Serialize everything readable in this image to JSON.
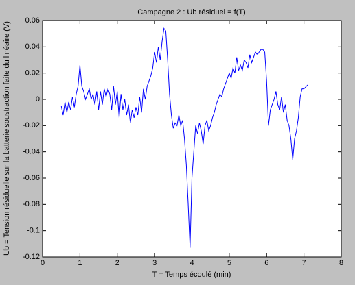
{
  "chart_data": {
    "type": "line",
    "title": "Campagne 2 : Ub résiduel = f(T)",
    "x_label": "T = Temps écoulé (min)",
    "y_label": "Ub = Tension résiduelle sur la batterie soustraction faite du linéaire (V)",
    "xlim": [
      0,
      8
    ],
    "xticks": [
      0,
      1,
      2,
      3,
      4,
      5,
      6,
      7,
      8
    ],
    "ylim": [
      -0.12,
      0.06
    ],
    "yticks": [
      -0.12,
      -0.1,
      -0.08,
      -0.06,
      -0.04,
      -0.02,
      0,
      0.02,
      0.04,
      0.06
    ],
    "series": [
      {
        "color": "#0000ff",
        "x": [
          0.5,
          0.55,
          0.6,
          0.65,
          0.7,
          0.75,
          0.8,
          0.85,
          0.9,
          0.95,
          1.0,
          1.05,
          1.1,
          1.15,
          1.2,
          1.25,
          1.3,
          1.35,
          1.4,
          1.45,
          1.5,
          1.55,
          1.6,
          1.65,
          1.7,
          1.75,
          1.8,
          1.85,
          1.9,
          1.95,
          2.0,
          2.05,
          2.1,
          2.15,
          2.2,
          2.25,
          2.3,
          2.35,
          2.4,
          2.45,
          2.5,
          2.55,
          2.6,
          2.65,
          2.7,
          2.75,
          2.8,
          2.85,
          2.9,
          2.95,
          3.0,
          3.05,
          3.1,
          3.15,
          3.2,
          3.25,
          3.3,
          3.35,
          3.4,
          3.45,
          3.5,
          3.55,
          3.6,
          3.65,
          3.7,
          3.75,
          3.8,
          3.85,
          3.9,
          3.95,
          4.0,
          4.05,
          4.1,
          4.15,
          4.2,
          4.25,
          4.3,
          4.35,
          4.4,
          4.45,
          4.5,
          4.55,
          4.6,
          4.65,
          4.7,
          4.75,
          4.8,
          4.85,
          4.9,
          4.95,
          5.0,
          5.05,
          5.1,
          5.15,
          5.2,
          5.25,
          5.3,
          5.35,
          5.4,
          5.45,
          5.5,
          5.55,
          5.6,
          5.65,
          5.7,
          5.75,
          5.8,
          5.85,
          5.9,
          5.95,
          6.0,
          6.05,
          6.1,
          6.15,
          6.2,
          6.25,
          6.3,
          6.35,
          6.4,
          6.45,
          6.5,
          6.55,
          6.6,
          6.65,
          6.7,
          6.75,
          6.8,
          6.85,
          6.9,
          6.95,
          7.0,
          7.1
        ],
        "values": [
          -0.005,
          -0.012,
          -0.002,
          -0.01,
          -0.002,
          -0.008,
          0.002,
          -0.006,
          0.004,
          0.01,
          0.026,
          0.01,
          0.006,
          0.0,
          0.004,
          0.008,
          0.0,
          0.004,
          -0.004,
          0.006,
          -0.008,
          0.006,
          -0.004,
          0.008,
          0.002,
          0.008,
          0.004,
          -0.008,
          0.01,
          -0.004,
          0.006,
          -0.014,
          0.004,
          -0.008,
          0.0,
          -0.012,
          -0.004,
          -0.018,
          -0.008,
          -0.014,
          -0.006,
          -0.012,
          0.002,
          -0.01,
          0.008,
          0.0,
          0.01,
          0.014,
          0.018,
          0.024,
          0.036,
          0.028,
          0.04,
          0.03,
          0.044,
          0.054,
          0.052,
          0.03,
          0.004,
          -0.012,
          -0.022,
          -0.018,
          -0.02,
          -0.012,
          -0.02,
          -0.016,
          -0.03,
          -0.05,
          -0.08,
          -0.113,
          -0.06,
          -0.04,
          -0.02,
          -0.026,
          -0.018,
          -0.024,
          -0.034,
          -0.02,
          -0.016,
          -0.024,
          -0.02,
          -0.014,
          -0.01,
          -0.004,
          0.0,
          0.004,
          0.002,
          0.008,
          0.012,
          0.016,
          0.02,
          0.016,
          0.024,
          0.02,
          0.032,
          0.022,
          0.026,
          0.022,
          0.03,
          0.028,
          0.024,
          0.034,
          0.028,
          0.032,
          0.036,
          0.034,
          0.036,
          0.038,
          0.038,
          0.036,
          0.014,
          -0.02,
          -0.008,
          -0.004,
          0.0,
          0.006,
          -0.004,
          -0.008,
          0.002,
          -0.01,
          -0.004,
          -0.016,
          -0.02,
          -0.03,
          -0.046,
          -0.03,
          -0.024,
          -0.014,
          0.002,
          0.008,
          0.008,
          0.011
        ]
      }
    ]
  }
}
